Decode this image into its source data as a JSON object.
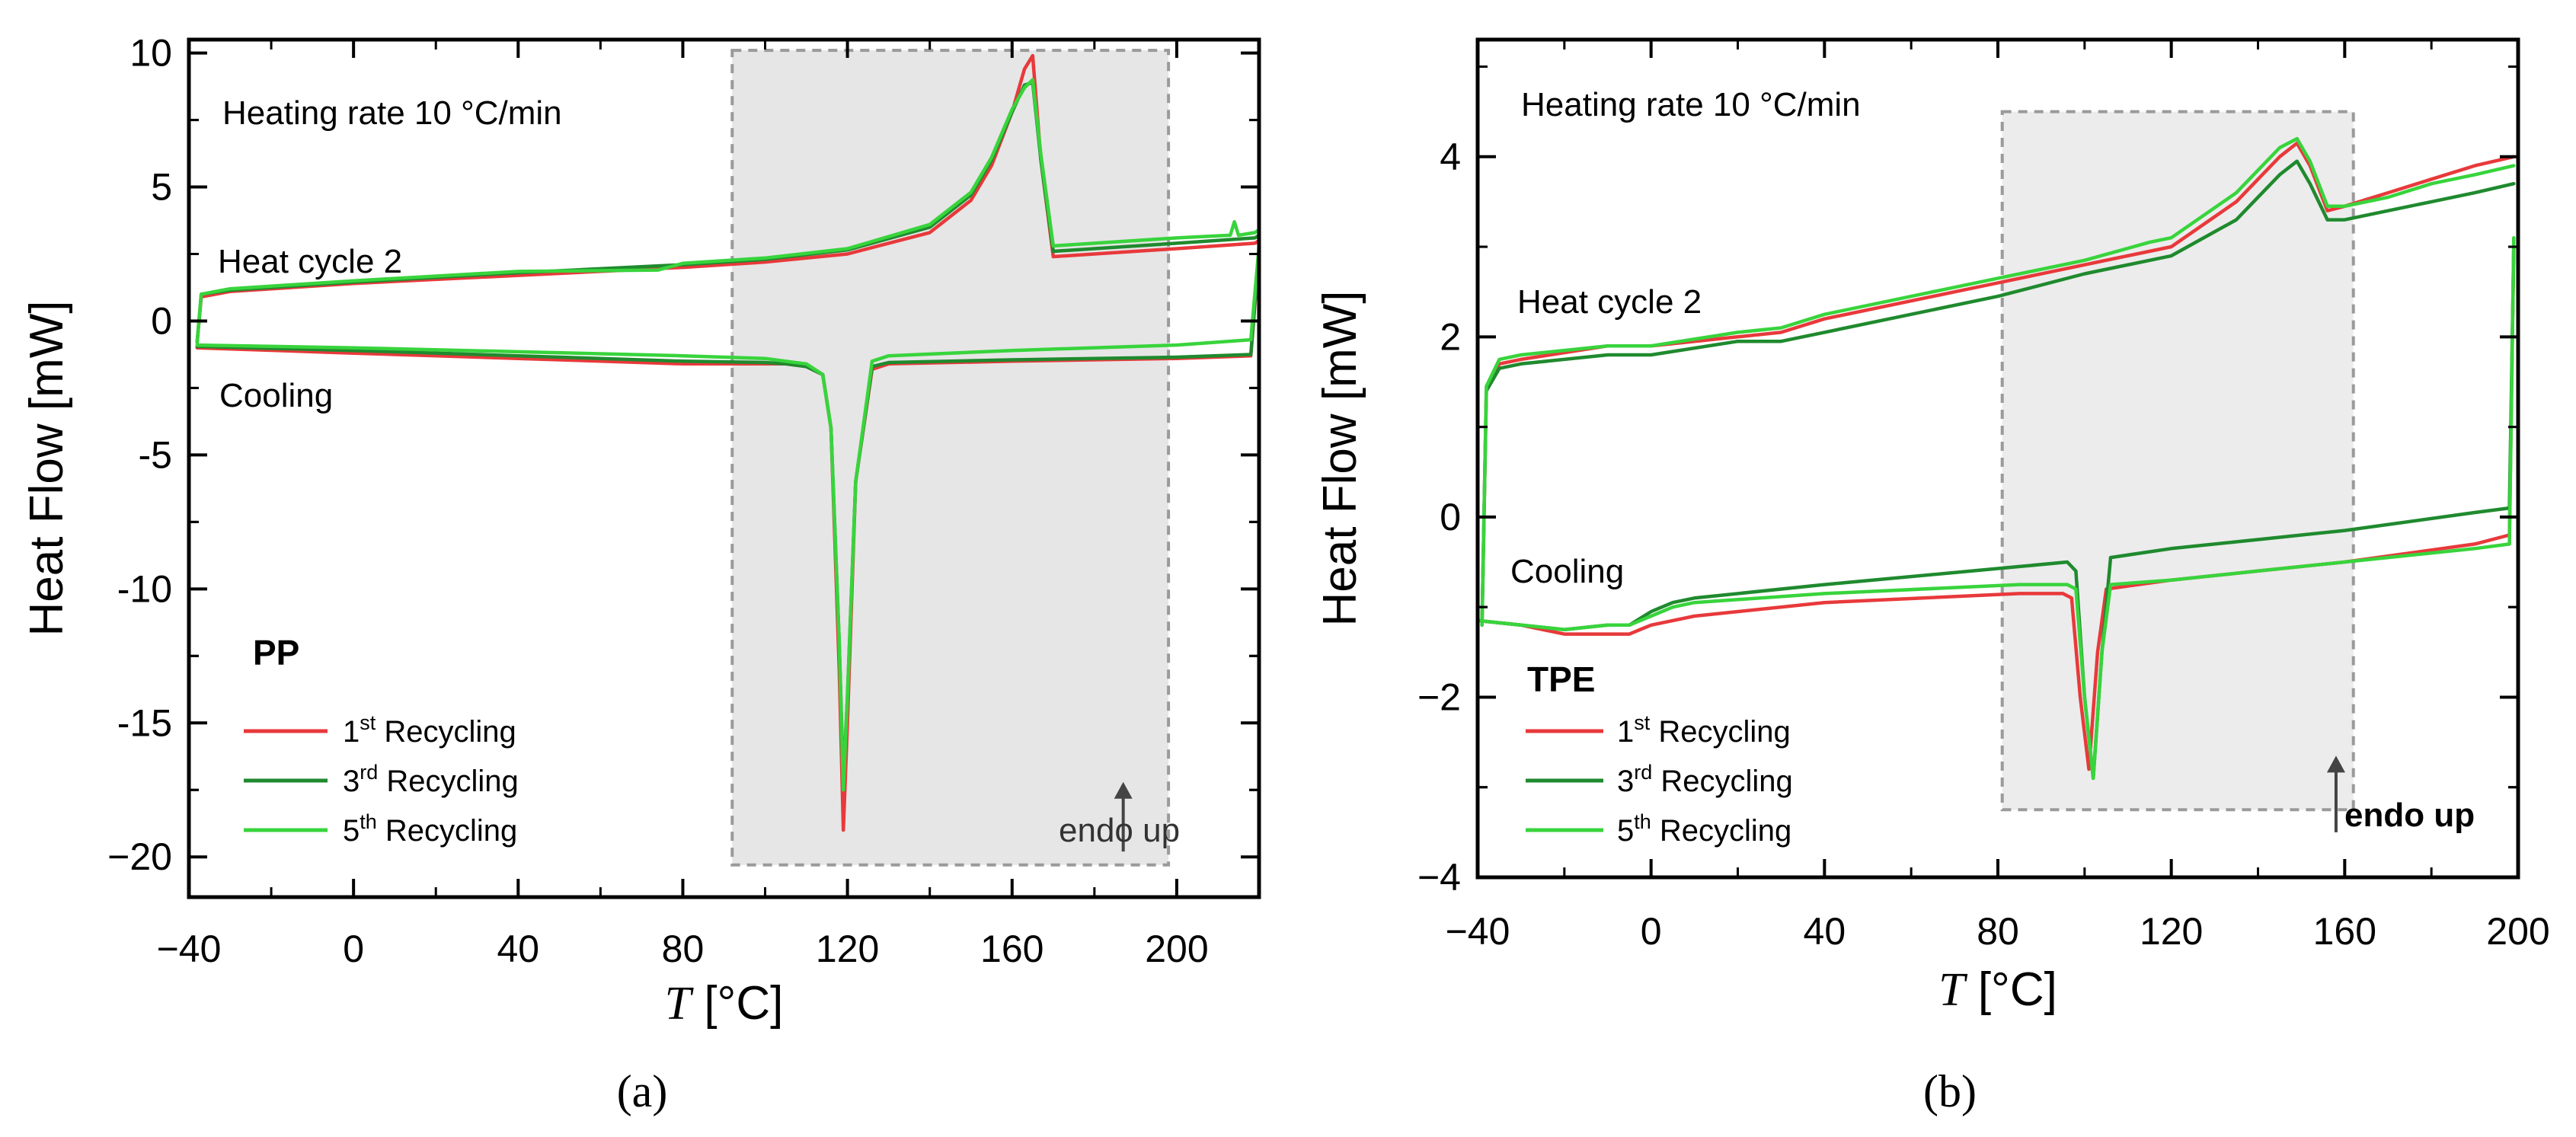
{
  "chart_data": [
    {
      "id": "a",
      "type": "line",
      "panel_label": "(a)",
      "sample": "PP",
      "xlabel_var": "T",
      "xlabel_unit": " [°C]",
      "ylabel": "Heat Flow [mW]",
      "xlim": [
        -40,
        220
      ],
      "ylim": [
        -21.5,
        10.5
      ],
      "xticks": [
        -40,
        0,
        40,
        80,
        120,
        160,
        200
      ],
      "yticks": [
        10,
        5,
        0,
        -5,
        -10,
        -15,
        -20
      ],
      "ytick_labels": [
        "10",
        "5",
        "0",
        "-5",
        "-10",
        "-15",
        "−20"
      ],
      "annotations": {
        "heating_rate": "Heating rate 10 °C/min",
        "heat_cycle": "Heat cycle 2",
        "cooling": "Cooling",
        "endo": "endo up"
      },
      "endo_bold": false,
      "highlight": {
        "x0": 92,
        "x1": 198,
        "y0": -20.3,
        "y1": 10.1,
        "fill": "#e6e6e6"
      },
      "endo_arrow": {
        "x": 187,
        "y_from": -19.8,
        "y_to": -17.2
      },
      "legend": {
        "placement": "lower-left",
        "entries": [
          {
            "ord": "1",
            "sup": "st",
            "text": " Recycling",
            "color": "#e8393b"
          },
          {
            "ord": "3",
            "sup": "rd",
            "text": " Recycling",
            "color": "#1f8a2e"
          },
          {
            "ord": "5",
            "sup": "th",
            "text": " Recycling",
            "color": "#38d43c"
          }
        ]
      },
      "series": [
        {
          "name": "1st Recycling heating",
          "color": "#e8393b",
          "x": [
            -38,
            -37,
            -30,
            0,
            40,
            80,
            100,
            120,
            140,
            150,
            155,
            160,
            163,
            165,
            167,
            170,
            180,
            200,
            219,
            220
          ],
          "y": [
            -0.8,
            0.9,
            1.1,
            1.4,
            1.7,
            2.0,
            2.2,
            2.5,
            3.3,
            4.5,
            5.8,
            7.8,
            9.4,
            9.9,
            6.0,
            2.4,
            2.5,
            2.7,
            2.9,
            3.0
          ]
        },
        {
          "name": "3rd Recycling heating",
          "color": "#1f8a2e",
          "x": [
            -38,
            -37,
            -30,
            0,
            40,
            80,
            100,
            120,
            140,
            150,
            155,
            160,
            163,
            165,
            167,
            170,
            180,
            200,
            219,
            220
          ],
          "y": [
            -0.8,
            1.0,
            1.15,
            1.45,
            1.8,
            2.1,
            2.3,
            2.65,
            3.5,
            4.7,
            6.0,
            7.8,
            8.8,
            8.9,
            6.0,
            2.6,
            2.7,
            2.9,
            3.1,
            3.2
          ]
        },
        {
          "name": "5th Recycling heating",
          "color": "#38d43c",
          "x": [
            -38,
            -37,
            -30,
            0,
            40,
            74,
            80,
            100,
            120,
            140,
            150,
            155,
            160,
            163,
            165,
            167,
            170,
            180,
            200,
            213,
            214,
            215,
            219,
            220
          ],
          "y": [
            -0.8,
            1.0,
            1.2,
            1.5,
            1.85,
            1.9,
            2.15,
            2.35,
            2.7,
            3.6,
            4.8,
            6.1,
            7.9,
            8.7,
            9.0,
            6.2,
            2.8,
            2.9,
            3.1,
            3.2,
            3.7,
            3.2,
            3.3,
            3.4
          ]
        },
        {
          "name": "1st Recycling cooling",
          "color": "#e8393b",
          "x": [
            220,
            218,
            200,
            160,
            130,
            126,
            122,
            120,
            119,
            118,
            116,
            114,
            110,
            105,
            100,
            80,
            40,
            0,
            -38
          ],
          "y": [
            2.6,
            -1.3,
            -1.4,
            -1.5,
            -1.6,
            -1.8,
            -6.0,
            -15.0,
            -19.0,
            -13.0,
            -4.0,
            -2.0,
            -1.7,
            -1.6,
            -1.6,
            -1.6,
            -1.4,
            -1.2,
            -1.0
          ]
        },
        {
          "name": "3rd Recycling cooling",
          "color": "#1f8a2e",
          "x": [
            220,
            218,
            200,
            160,
            130,
            126,
            122,
            120,
            119,
            118,
            116,
            114,
            110,
            105,
            100,
            80,
            40,
            0,
            -38
          ],
          "y": [
            2.7,
            -1.25,
            -1.35,
            -1.45,
            -1.55,
            -1.7,
            -6.0,
            -14.0,
            -17.2,
            -12.0,
            -4.0,
            -2.0,
            -1.7,
            -1.6,
            -1.55,
            -1.5,
            -1.3,
            -1.1,
            -0.95
          ]
        },
        {
          "name": "5th Recycling cooling",
          "color": "#38d43c",
          "x": [
            220,
            218,
            200,
            160,
            130,
            126,
            122,
            120,
            119,
            118,
            116,
            114,
            110,
            105,
            100,
            80,
            40,
            0,
            -38
          ],
          "y": [
            2.8,
            -0.7,
            -0.9,
            -1.1,
            -1.3,
            -1.5,
            -6.0,
            -14.0,
            -17.5,
            -12.0,
            -4.0,
            -2.0,
            -1.6,
            -1.5,
            -1.4,
            -1.3,
            -1.15,
            -1.0,
            -0.9
          ]
        }
      ]
    },
    {
      "id": "b",
      "type": "line",
      "panel_label": "(b)",
      "sample": "TPE",
      "xlabel_var": "T",
      "xlabel_unit": " [°C]",
      "ylabel": "Heat Flow [mW]",
      "xlim": [
        -40,
        200
      ],
      "ylim": [
        -4,
        5.3
      ],
      "xticks": [
        -40,
        0,
        40,
        80,
        120,
        160,
        200
      ],
      "yticks": [
        4,
        2,
        0,
        -2,
        -4
      ],
      "ytick_labels": [
        "4",
        "2",
        "0",
        "−2",
        "−4"
      ],
      "annotations": {
        "heating_rate": "Heating rate 10 °C/min",
        "heat_cycle": "Heat cycle 2",
        "cooling": "Cooling",
        "endo": "endo up"
      },
      "endo_bold": true,
      "highlight": {
        "x0": 81,
        "x1": 162,
        "y0": -3.25,
        "y1": 4.5,
        "fill": "#ececec"
      },
      "endo_arrow": {
        "x": 158,
        "y_from": -3.5,
        "y_to": -2.65
      },
      "legend": {
        "placement": "lower-left",
        "entries": [
          {
            "ord": "1",
            "sup": "st",
            "text": " Recycling",
            "color": "#e8393b"
          },
          {
            "ord": "3",
            "sup": "rd",
            "text": " Recycling",
            "color": "#1f8a2e"
          },
          {
            "ord": "5",
            "sup": "th",
            "text": " Recycling",
            "color": "#38d43c"
          }
        ]
      },
      "series": [
        {
          "name": "1st Recycling heating",
          "color": "#e8393b",
          "x": [
            -39,
            -38,
            -35,
            -30,
            -10,
            0,
            20,
            30,
            40,
            80,
            100,
            120,
            135,
            145,
            149,
            152,
            156,
            160,
            170,
            180,
            190,
            199
          ],
          "y": [
            -1.2,
            1.4,
            1.7,
            1.75,
            1.9,
            1.9,
            2.0,
            2.05,
            2.2,
            2.6,
            2.8,
            3.0,
            3.5,
            4.0,
            4.15,
            3.9,
            3.4,
            3.45,
            3.6,
            3.75,
            3.9,
            4.0
          ]
        },
        {
          "name": "3rd Recycling heating",
          "color": "#1f8a2e",
          "x": [
            -39,
            -38,
            -35,
            -30,
            -10,
            0,
            20,
            30,
            40,
            80,
            100,
            120,
            135,
            145,
            149,
            152,
            156,
            160,
            170,
            180,
            190,
            199
          ],
          "y": [
            -1.2,
            1.4,
            1.65,
            1.7,
            1.8,
            1.8,
            1.95,
            1.95,
            2.05,
            2.45,
            2.7,
            2.9,
            3.3,
            3.8,
            3.95,
            3.7,
            3.3,
            3.3,
            3.4,
            3.5,
            3.6,
            3.7
          ]
        },
        {
          "name": "5th Recycling heating",
          "color": "#38d43c",
          "x": [
            -39,
            -38,
            -35,
            -30,
            -10,
            0,
            20,
            30,
            40,
            80,
            100,
            115,
            120,
            135,
            145,
            149,
            152,
            156,
            160,
            170,
            180,
            190,
            199
          ],
          "y": [
            -1.2,
            1.45,
            1.75,
            1.8,
            1.9,
            1.9,
            2.05,
            2.1,
            2.25,
            2.65,
            2.85,
            3.05,
            3.1,
            3.6,
            4.1,
            4.2,
            3.95,
            3.45,
            3.45,
            3.55,
            3.7,
            3.8,
            3.9
          ]
        },
        {
          "name": "1st Recycling cooling",
          "color": "#e8393b",
          "x": [
            199,
            198,
            190,
            160,
            140,
            120,
            105,
            103,
            101,
            99,
            97,
            95,
            85,
            40,
            10,
            5,
            0,
            -5,
            -20,
            -30,
            -40
          ],
          "y": [
            3.0,
            -0.2,
            -0.3,
            -0.5,
            -0.6,
            -0.7,
            -0.8,
            -1.5,
            -2.8,
            -2.0,
            -0.9,
            -0.85,
            -0.85,
            -0.95,
            -1.1,
            -1.15,
            -1.2,
            -1.3,
            -1.3,
            -1.2,
            -1.15
          ]
        },
        {
          "name": "3rd Recycling cooling",
          "color": "#1f8a2e",
          "x": [
            199,
            198,
            190,
            160,
            140,
            120,
            106,
            104,
            102,
            100,
            98,
            96,
            85,
            40,
            10,
            5,
            0,
            -5,
            -10,
            -20,
            -30,
            -40
          ],
          "y": [
            3.0,
            0.1,
            0.05,
            -0.15,
            -0.25,
            -0.35,
            -0.45,
            -1.5,
            -2.9,
            -2.0,
            -0.6,
            -0.5,
            -0.55,
            -0.75,
            -0.9,
            -0.95,
            -1.05,
            -1.2,
            -1.2,
            -1.25,
            -1.2,
            -1.15
          ]
        },
        {
          "name": "5th Recycling cooling",
          "color": "#38d43c",
          "x": [
            199,
            198,
            190,
            160,
            140,
            120,
            106,
            104,
            102,
            100,
            98,
            96,
            85,
            40,
            10,
            5,
            0,
            -5,
            -10,
            -20,
            -30,
            -40
          ],
          "y": [
            3.1,
            -0.3,
            -0.35,
            -0.5,
            -0.6,
            -0.7,
            -0.75,
            -1.5,
            -2.9,
            -2.0,
            -0.8,
            -0.75,
            -0.75,
            -0.85,
            -0.95,
            -1.0,
            -1.1,
            -1.2,
            -1.2,
            -1.25,
            -1.2,
            -1.15
          ]
        }
      ]
    }
  ]
}
